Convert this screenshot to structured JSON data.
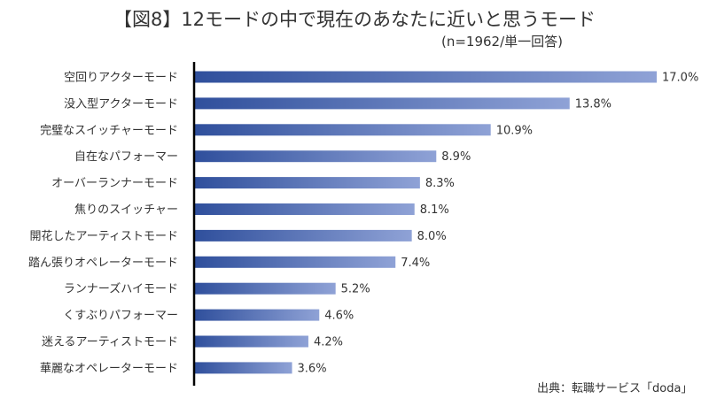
{
  "title": "【図8】12モードの中で現在のあなたに近いと思うモード",
  "subtitle": "(n=1962/単一回答)",
  "source": "出典：転職サービス「doda」",
  "colors": {
    "bar_dark": "#2f4f9c",
    "bar_light": "#8fa2d6",
    "axis": "#000000"
  },
  "chart_data": {
    "type": "bar",
    "orientation": "horizontal",
    "categories": [
      "空回りアクターモード",
      "没入型アクターモード",
      "完璧なスイッチャーモード",
      "自在なパフォーマー",
      "オーバーランナーモード",
      "焦りのスイッチャー",
      "開花したアーティストモード",
      "踏ん張りオペレーターモード",
      "ランナーズハイモード",
      "くすぶりパフォーマー",
      "迷えるアーティストモード",
      "華麗なオペレーターモード"
    ],
    "values": [
      17.0,
      13.8,
      10.9,
      8.9,
      8.3,
      8.1,
      8.0,
      7.4,
      5.2,
      4.6,
      4.2,
      3.6
    ],
    "value_labels": [
      "17.0%",
      "13.8%",
      "10.9%",
      "8.9%",
      "8.3%",
      "8.1%",
      "8.0%",
      "7.4%",
      "5.2%",
      "4.6%",
      "4.2%",
      "3.6%"
    ],
    "unit": "%",
    "xlim": [
      0,
      17.0
    ],
    "grid": false,
    "legend": "none"
  }
}
